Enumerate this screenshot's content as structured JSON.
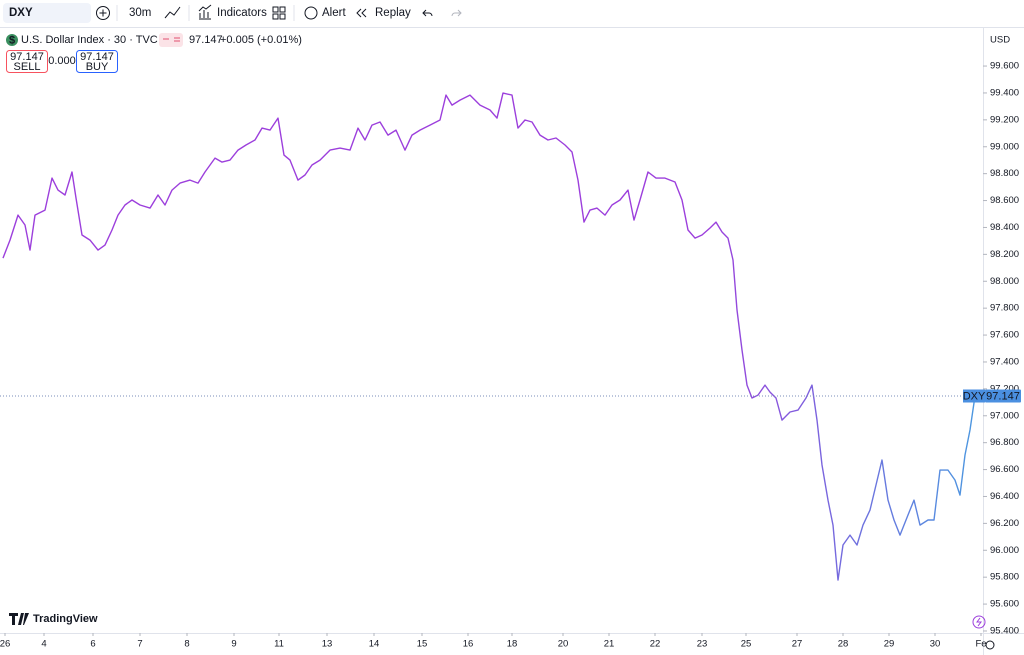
{
  "toolbar": {
    "symbol": "DXY",
    "interval": "30m",
    "indicators": "Indicators",
    "alert": "Alert",
    "replay": "Replay"
  },
  "legend": {
    "title": "U.S. Dollar Index · 30 · TVC",
    "price": "97.147",
    "change": "+0.005 (+0.01%)"
  },
  "trade": {
    "sell_price": "97.147",
    "sell": "SELL",
    "spread": "0.000",
    "buy_price": "97.147",
    "buy": "BUY"
  },
  "currency": "USD",
  "brand": "TradingView",
  "chart_data": {
    "type": "line",
    "x": [
      3,
      10,
      18,
      25,
      30,
      35,
      45,
      52,
      58,
      65,
      72,
      76,
      82,
      90,
      98,
      105,
      112,
      118,
      125,
      132,
      140,
      150,
      158,
      165,
      172,
      180,
      190,
      198,
      205,
      215,
      222,
      230,
      238,
      246,
      255,
      262,
      270,
      278,
      284,
      290,
      298,
      305,
      312,
      320,
      330,
      340,
      350,
      358,
      365,
      372,
      380,
      388,
      396,
      405,
      412,
      420,
      430,
      440,
      446,
      452,
      460,
      470,
      480,
      490,
      497,
      503,
      512,
      518,
      525,
      532,
      540,
      548,
      556,
      565,
      572,
      578,
      584,
      590,
      597,
      605,
      612,
      620,
      628,
      634,
      640,
      648,
      656,
      665,
      675,
      682,
      688,
      695,
      702,
      710,
      716,
      722,
      728,
      733,
      737,
      742,
      747,
      752,
      758,
      765,
      770,
      776,
      782,
      790,
      798,
      806,
      812,
      817,
      822,
      828,
      833,
      838,
      843,
      850,
      857,
      863,
      870,
      876,
      882,
      888,
      894,
      900,
      908,
      914,
      920,
      928,
      934,
      940,
      948,
      955,
      960,
      965,
      970,
      975
    ],
    "series": [
      {
        "name": "DXY",
        "color": "#9c3fdc",
        "color_end": "#4a9ae0",
        "values": [
          98.172,
          98.306,
          98.492,
          98.418,
          98.232,
          98.492,
          98.529,
          98.767,
          98.678,
          98.641,
          98.812,
          98.619,
          98.344,
          98.306,
          98.232,
          98.269,
          98.381,
          98.492,
          98.567,
          98.604,
          98.567,
          98.544,
          98.641,
          98.567,
          98.678,
          98.73,
          98.752,
          98.73,
          98.812,
          98.916,
          98.886,
          98.901,
          98.975,
          99.013,
          99.05,
          99.139,
          99.124,
          99.213,
          98.938,
          98.901,
          98.752,
          98.79,
          98.864,
          98.901,
          98.975,
          98.99,
          98.975,
          99.139,
          99.05,
          99.161,
          99.184,
          99.087,
          99.124,
          98.975,
          99.087,
          99.124,
          99.161,
          99.199,
          99.384,
          99.31,
          99.347,
          99.384,
          99.31,
          99.273,
          99.213,
          99.399,
          99.384,
          99.139,
          99.199,
          99.184,
          99.087,
          99.05,
          99.065,
          99.013,
          98.961,
          98.752,
          98.44,
          98.529,
          98.544,
          98.492,
          98.567,
          98.604,
          98.678,
          98.455,
          98.604,
          98.812,
          98.767,
          98.767,
          98.738,
          98.604,
          98.381,
          98.321,
          98.344,
          98.396,
          98.44,
          98.366,
          98.321,
          98.158,
          97.786,
          97.489,
          97.228,
          97.132,
          97.154,
          97.228,
          97.176,
          97.132,
          96.968,
          97.028,
          97.042,
          97.132,
          97.228,
          96.968,
          96.634,
          96.373,
          96.187,
          95.778,
          96.039,
          96.113,
          96.039,
          96.187,
          96.299,
          96.485,
          96.671,
          96.373,
          96.225,
          96.113,
          96.262,
          96.373,
          96.187,
          96.225,
          96.225,
          96.596,
          96.596,
          96.522,
          96.41,
          96.708,
          96.894,
          97.147
        ]
      }
    ],
    "last_value": 97.147,
    "xlim": [
      0,
      983
    ],
    "xticks": [
      {
        "value": 5,
        "label": "26"
      },
      {
        "value": 44,
        "label": "4"
      },
      {
        "value": 93,
        "label": "6"
      },
      {
        "value": 140,
        "label": "7"
      },
      {
        "value": 187,
        "label": "8"
      },
      {
        "value": 234,
        "label": "9"
      },
      {
        "value": 279,
        "label": "11"
      },
      {
        "value": 327,
        "label": "13"
      },
      {
        "value": 374,
        "label": "14"
      },
      {
        "value": 422,
        "label": "15"
      },
      {
        "value": 468,
        "label": "16"
      },
      {
        "value": 512,
        "label": "18"
      },
      {
        "value": 563,
        "label": "20"
      },
      {
        "value": 609,
        "label": "21"
      },
      {
        "value": 655,
        "label": "22"
      },
      {
        "value": 702,
        "label": "23"
      },
      {
        "value": 746,
        "label": "25"
      },
      {
        "value": 797,
        "label": "27"
      },
      {
        "value": 843,
        "label": "28"
      },
      {
        "value": 889,
        "label": "29"
      },
      {
        "value": 935,
        "label": "30"
      },
      {
        "value": 981,
        "label": "Fe"
      }
    ],
    "ylim": [
      95.385,
      99.868
    ],
    "yticks": [
      {
        "value": 95.4,
        "label": "95.400"
      },
      {
        "value": 95.6,
        "label": "95.600"
      },
      {
        "value": 95.8,
        "label": "95.800"
      },
      {
        "value": 96.0,
        "label": "96.000"
      },
      {
        "value": 96.2,
        "label": "96.200"
      },
      {
        "value": 96.4,
        "label": "96.400"
      },
      {
        "value": 96.6,
        "label": "96.600"
      },
      {
        "value": 96.8,
        "label": "96.800"
      },
      {
        "value": 97.0,
        "label": "97.000"
      },
      {
        "value": 97.2,
        "label": "97.200"
      },
      {
        "value": 97.4,
        "label": "97.400"
      },
      {
        "value": 97.6,
        "label": "97.600"
      },
      {
        "value": 97.8,
        "label": "97.800"
      },
      {
        "value": 98.0,
        "label": "98.000"
      },
      {
        "value": 98.2,
        "label": "98.200"
      },
      {
        "value": 98.4,
        "label": "98.400"
      },
      {
        "value": 98.6,
        "label": "98.600"
      },
      {
        "value": 98.8,
        "label": "98.800"
      },
      {
        "value": 99.0,
        "label": "99.000"
      },
      {
        "value": 99.2,
        "label": "99.200"
      },
      {
        "value": 99.4,
        "label": "99.400"
      },
      {
        "value": 99.6,
        "label": "99.600"
      }
    ],
    "grid": false
  }
}
